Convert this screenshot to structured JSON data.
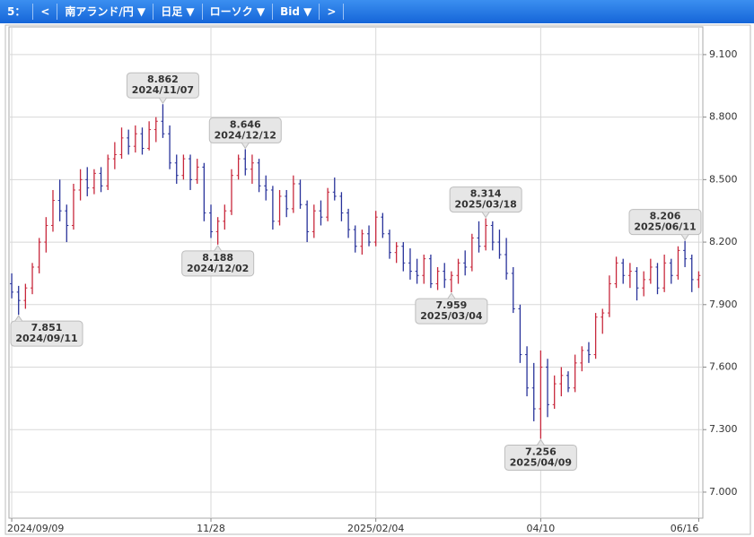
{
  "toolbar": [
    "5：",
    "<",
    "南アランド/円 ▼",
    "日足 ▼",
    "ローソク ▼",
    "Bid ▼",
    ">"
  ],
  "chart_data": {
    "type": "ohlc",
    "grid": true,
    "up_color": "#c8283c",
    "down_color": "#28329a",
    "xlim": [
      -0.4,
      100.6
    ],
    "ylim": [
      6.875,
      9.233
    ],
    "xticks": [
      {
        "value": 0,
        "label": "2024/09/09"
      },
      {
        "value": 29,
        "label": "11/28"
      },
      {
        "value": 53,
        "label": "2025/02/04"
      },
      {
        "value": 77,
        "label": "04/10"
      },
      {
        "value": 100,
        "label": "06/16"
      }
    ],
    "yticks": [
      {
        "value": 7,
        "label": "7.000"
      },
      {
        "value": 7.3,
        "label": "7.300"
      },
      {
        "value": 7.6,
        "label": "7.600"
      },
      {
        "value": 7.9,
        "label": "7.900"
      },
      {
        "value": 8.2,
        "label": "8.200"
      },
      {
        "value": 8.5,
        "label": "8.500"
      },
      {
        "value": 8.8,
        "label": "8.800"
      },
      {
        "value": 9.1,
        "label": "9.100"
      }
    ],
    "ohlc": [
      [
        8.0,
        8.05,
        7.93,
        7.96
      ],
      [
        7.96,
        7.99,
        7.851,
        7.92
      ],
      [
        7.92,
        8.0,
        7.88,
        7.98
      ],
      [
        7.98,
        8.1,
        7.95,
        8.08
      ],
      [
        8.08,
        8.22,
        8.05,
        8.2
      ],
      [
        8.2,
        8.32,
        8.15,
        8.28
      ],
      [
        8.28,
        8.45,
        8.25,
        8.4
      ],
      [
        8.4,
        8.5,
        8.3,
        8.35
      ],
      [
        8.35,
        8.38,
        8.2,
        8.28
      ],
      [
        8.28,
        8.48,
        8.26,
        8.45
      ],
      [
        8.45,
        8.55,
        8.4,
        8.5
      ],
      [
        8.5,
        8.56,
        8.42,
        8.46
      ],
      [
        8.46,
        8.55,
        8.43,
        8.53
      ],
      [
        8.53,
        8.56,
        8.44,
        8.47
      ],
      [
        8.47,
        8.62,
        8.45,
        8.6
      ],
      [
        8.6,
        8.68,
        8.55,
        8.62
      ],
      [
        8.62,
        8.75,
        8.6,
        8.7
      ],
      [
        8.7,
        8.74,
        8.62,
        8.66
      ],
      [
        8.66,
        8.76,
        8.63,
        8.72
      ],
      [
        8.72,
        8.75,
        8.62,
        8.65
      ],
      [
        8.65,
        8.78,
        8.64,
        8.74
      ],
      [
        8.74,
        8.8,
        8.68,
        8.78
      ],
      [
        8.78,
        8.862,
        8.7,
        8.72
      ],
      [
        8.72,
        8.76,
        8.55,
        8.58
      ],
      [
        8.58,
        8.62,
        8.48,
        8.52
      ],
      [
        8.52,
        8.62,
        8.5,
        8.6
      ],
      [
        8.6,
        8.62,
        8.45,
        8.5
      ],
      [
        8.5,
        8.6,
        8.48,
        8.56
      ],
      [
        8.56,
        8.58,
        8.3,
        8.34
      ],
      [
        8.34,
        8.38,
        8.22,
        8.25
      ],
      [
        8.25,
        8.32,
        8.188,
        8.3
      ],
      [
        8.3,
        8.38,
        8.26,
        8.35
      ],
      [
        8.35,
        8.55,
        8.33,
        8.52
      ],
      [
        8.52,
        8.62,
        8.5,
        8.6
      ],
      [
        8.6,
        8.646,
        8.52,
        8.55
      ],
      [
        8.55,
        8.62,
        8.48,
        8.58
      ],
      [
        8.58,
        8.6,
        8.44,
        8.47
      ],
      [
        8.47,
        8.52,
        8.4,
        8.45
      ],
      [
        8.45,
        8.47,
        8.26,
        8.3
      ],
      [
        8.3,
        8.45,
        8.28,
        8.42
      ],
      [
        8.42,
        8.45,
        8.32,
        8.36
      ],
      [
        8.36,
        8.52,
        8.34,
        8.48
      ],
      [
        8.48,
        8.5,
        8.36,
        8.38
      ],
      [
        8.38,
        8.4,
        8.2,
        8.25
      ],
      [
        8.25,
        8.38,
        8.22,
        8.35
      ],
      [
        8.35,
        8.4,
        8.28,
        8.32
      ],
      [
        8.32,
        8.46,
        8.3,
        8.44
      ],
      [
        8.44,
        8.51,
        8.4,
        8.42
      ],
      [
        8.42,
        8.44,
        8.3,
        8.34
      ],
      [
        8.34,
        8.36,
        8.22,
        8.26
      ],
      [
        8.26,
        8.28,
        8.15,
        8.18
      ],
      [
        8.18,
        8.26,
        8.14,
        8.24
      ],
      [
        8.24,
        8.28,
        8.18,
        8.2
      ],
      [
        8.2,
        8.35,
        8.18,
        8.32
      ],
      [
        8.32,
        8.34,
        8.22,
        8.24
      ],
      [
        8.24,
        8.26,
        8.12,
        8.15
      ],
      [
        8.15,
        8.2,
        8.1,
        8.18
      ],
      [
        8.18,
        8.2,
        8.06,
        8.1
      ],
      [
        8.1,
        8.17,
        8.02,
        8.06
      ],
      [
        8.06,
        8.12,
        8.0,
        8.04
      ],
      [
        8.04,
        8.14,
        8.0,
        8.12
      ],
      [
        8.12,
        8.14,
        7.98,
        8.0
      ],
      [
        8.0,
        8.08,
        7.97,
        8.06
      ],
      [
        8.06,
        8.1,
        7.98,
        8.02
      ],
      [
        8.02,
        8.06,
        7.959,
        8.04
      ],
      [
        8.04,
        8.12,
        8.0,
        8.1
      ],
      [
        8.1,
        8.16,
        8.04,
        8.08
      ],
      [
        8.08,
        8.24,
        8.06,
        8.22
      ],
      [
        8.22,
        8.3,
        8.15,
        8.18
      ],
      [
        8.18,
        8.314,
        8.16,
        8.28
      ],
      [
        8.28,
        8.3,
        8.16,
        8.2
      ],
      [
        8.2,
        8.26,
        8.12,
        8.14
      ],
      [
        8.14,
        8.22,
        8.02,
        8.05
      ],
      [
        8.05,
        8.08,
        7.86,
        7.88
      ],
      [
        7.88,
        7.9,
        7.62,
        7.66
      ],
      [
        7.66,
        7.7,
        7.46,
        7.5
      ],
      [
        7.5,
        7.62,
        7.34,
        7.4
      ],
      [
        7.4,
        7.68,
        7.256,
        7.6
      ],
      [
        7.6,
        7.64,
        7.36,
        7.42
      ],
      [
        7.42,
        7.56,
        7.4,
        7.52
      ],
      [
        7.52,
        7.6,
        7.46,
        7.56
      ],
      [
        7.56,
        7.58,
        7.48,
        7.5
      ],
      [
        7.5,
        7.66,
        7.48,
        7.62
      ],
      [
        7.62,
        7.7,
        7.58,
        7.68
      ],
      [
        7.68,
        7.72,
        7.62,
        7.66
      ],
      [
        7.66,
        7.86,
        7.64,
        7.84
      ],
      [
        7.84,
        7.88,
        7.76,
        7.86
      ],
      [
        7.86,
        8.04,
        7.84,
        8.0
      ],
      [
        8.0,
        8.13,
        7.98,
        8.1
      ],
      [
        8.1,
        8.12,
        8.0,
        8.04
      ],
      [
        8.04,
        8.1,
        7.98,
        8.06
      ],
      [
        8.06,
        8.08,
        7.92,
        7.98
      ],
      [
        7.98,
        8.06,
        7.94,
        8.02
      ],
      [
        8.02,
        8.12,
        8.0,
        8.08
      ],
      [
        8.08,
        8.1,
        7.95,
        7.98
      ],
      [
        7.98,
        8.14,
        7.96,
        8.1
      ],
      [
        8.1,
        8.12,
        8.0,
        8.04
      ],
      [
        8.04,
        8.18,
        8.02,
        8.16
      ],
      [
        8.16,
        8.206,
        8.08,
        8.12
      ],
      [
        8.12,
        8.14,
        7.96,
        8.02
      ],
      [
        8.02,
        8.06,
        7.98,
        8.04
      ]
    ],
    "annotations": [
      {
        "value": 7.851,
        "label": "2024/09/11"
      },
      {
        "value": 8.862,
        "label": "2024/11/07"
      },
      {
        "value": 8.188,
        "label": "2024/12/02"
      },
      {
        "value": 8.646,
        "label": "2024/12/12"
      },
      {
        "value": 7.959,
        "label": "2025/03/04"
      },
      {
        "value": 8.314,
        "label": "2025/03/18"
      },
      {
        "value": 7.256,
        "label": "2025/04/09"
      },
      {
        "value": 8.206,
        "label": "2025/06/11"
      }
    ]
  }
}
